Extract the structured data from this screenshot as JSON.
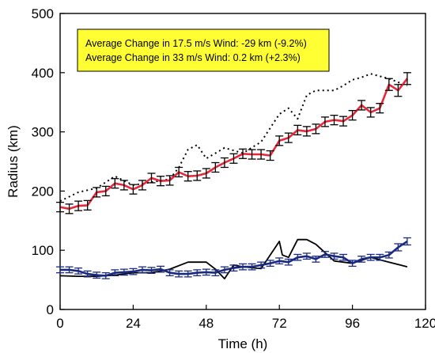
{
  "chart_data": {
    "type": "line",
    "title": "",
    "xlabel": "Time (h)",
    "ylabel": "Radius (km)",
    "xlim": [
      0,
      120
    ],
    "ylim": [
      0,
      500
    ],
    "x_ticks": [
      0,
      24,
      48,
      72,
      96,
      120
    ],
    "y_ticks": [
      0,
      100,
      200,
      300,
      400,
      500
    ],
    "grid": false,
    "annotations": [
      "Average Change in 17.5 m/s Wind: -29 km (-9.2%)",
      "Average Change in 33 m/s Wind: 0.2 km (+2.3%)"
    ],
    "colors": {
      "red_series": "#e8283a",
      "blue_series": "#1a2a80",
      "dotted_series": "#000000",
      "black_series": "#000000",
      "annotation_fill": "#ffff33"
    },
    "series": [
      {
        "style": "red-line-with-error-bars",
        "x": [
          0,
          3,
          6,
          9,
          12,
          15,
          18,
          21,
          24,
          27,
          30,
          33,
          36,
          39,
          42,
          45,
          48,
          51,
          54,
          57,
          60,
          63,
          66,
          69,
          72,
          75,
          78,
          81,
          84,
          87,
          90,
          93,
          96,
          99,
          102,
          105,
          108,
          111,
          114
        ],
        "y": [
          173,
          170,
          175,
          176,
          198,
          200,
          213,
          210,
          203,
          210,
          222,
          217,
          218,
          232,
          225,
          226,
          230,
          240,
          248,
          255,
          263,
          262,
          262,
          260,
          285,
          290,
          303,
          301,
          305,
          317,
          320,
          318,
          328,
          345,
          333,
          340,
          380,
          370,
          390
        ],
        "err": [
          8,
          8,
          8,
          8,
          8,
          8,
          8,
          8,
          8,
          8,
          8,
          8,
          8,
          8,
          8,
          8,
          8,
          8,
          8,
          8,
          8,
          8,
          8,
          8,
          8,
          8,
          8,
          8,
          8,
          8,
          8,
          8,
          8,
          8,
          8,
          8,
          10,
          10,
          10
        ]
      },
      {
        "style": "blue-line-with-error-bars",
        "x": [
          0,
          3,
          6,
          9,
          12,
          15,
          18,
          21,
          24,
          27,
          30,
          33,
          36,
          39,
          42,
          45,
          48,
          51,
          54,
          57,
          60,
          63,
          66,
          69,
          72,
          75,
          78,
          81,
          84,
          87,
          90,
          93,
          96,
          99,
          102,
          105,
          108,
          111,
          114
        ],
        "y": [
          67,
          67,
          65,
          60,
          58,
          57,
          62,
          63,
          64,
          67,
          66,
          68,
          62,
          60,
          60,
          62,
          63,
          62,
          67,
          70,
          72,
          72,
          75,
          78,
          82,
          80,
          88,
          90,
          85,
          93,
          90,
          88,
          78,
          85,
          88,
          88,
          92,
          105,
          115
        ],
        "err": [
          5,
          5,
          5,
          5,
          5,
          5,
          5,
          5,
          5,
          5,
          5,
          5,
          5,
          5,
          5,
          5,
          5,
          5,
          5,
          5,
          5,
          5,
          5,
          5,
          5,
          5,
          5,
          5,
          5,
          5,
          5,
          5,
          5,
          5,
          5,
          5,
          5,
          6,
          6
        ]
      },
      {
        "style": "black-dotted-line",
        "x": [
          0,
          6,
          12,
          18,
          24,
          30,
          36,
          39,
          42,
          45,
          48,
          54,
          60,
          66,
          72,
          75,
          78,
          81,
          84,
          90,
          93,
          96,
          99,
          102,
          108,
          114
        ],
        "y": [
          183,
          198,
          205,
          225,
          210,
          215,
          220,
          240,
          270,
          278,
          255,
          273,
          264,
          283,
          330,
          340,
          322,
          362,
          370,
          370,
          378,
          388,
          392,
          398,
          390,
          378
        ],
        "err": []
      },
      {
        "style": "black-solid-line",
        "x": [
          0,
          6,
          12,
          18,
          24,
          30,
          36,
          42,
          48,
          51,
          54,
          57,
          60,
          66,
          72,
          73,
          75,
          78,
          81,
          84,
          90,
          96,
          102,
          108,
          114
        ],
        "y": [
          57,
          56,
          56,
          58,
          62,
          62,
          68,
          80,
          80,
          68,
          52,
          75,
          72,
          69,
          115,
          92,
          88,
          118,
          118,
          110,
          82,
          78,
          88,
          80,
          72
        ],
        "err": []
      }
    ]
  }
}
